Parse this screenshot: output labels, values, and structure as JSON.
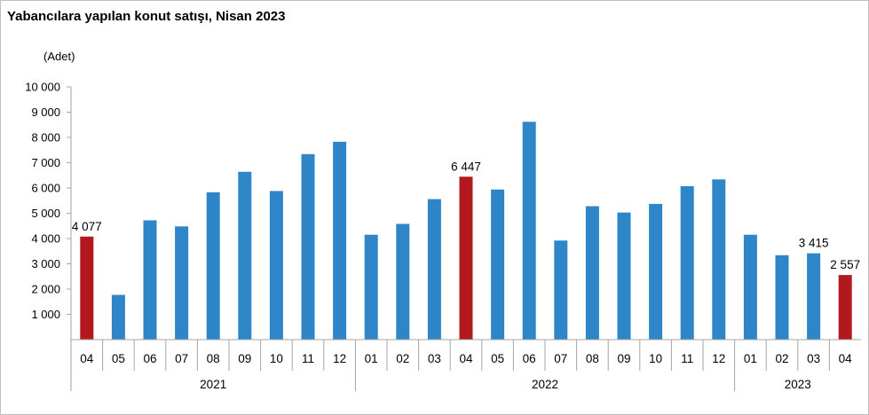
{
  "chart_data": {
    "type": "bar",
    "title": "Yabancılara yapılan konut satışı, Nisan 2023",
    "unit_label": "(Adet)",
    "ylim": [
      0,
      10000
    ],
    "yticks": [
      {
        "value": 1000,
        "label": "1 000"
      },
      {
        "value": 2000,
        "label": "2 000"
      },
      {
        "value": 3000,
        "label": "3 000"
      },
      {
        "value": 4000,
        "label": "4 000"
      },
      {
        "value": 5000,
        "label": "5 000"
      },
      {
        "value": 6000,
        "label": "6 000"
      },
      {
        "value": 7000,
        "label": "7 000"
      },
      {
        "value": 8000,
        "label": "8 000"
      },
      {
        "value": 9000,
        "label": "9 000"
      },
      {
        "value": 10000,
        "label": "10 000"
      }
    ],
    "colors": {
      "default": "#2e86c8",
      "highlight": "#b2191e"
    },
    "groups": [
      {
        "year": "2021",
        "months": [
          "04",
          "05",
          "06",
          "07",
          "08",
          "09",
          "10",
          "11",
          "12"
        ],
        "values": [
          4077,
          1770,
          4720,
          4480,
          5830,
          6640,
          5880,
          7340,
          7830
        ],
        "highlight": [
          true,
          false,
          false,
          false,
          false,
          false,
          false,
          false,
          false
        ],
        "labels": [
          "4 077",
          null,
          null,
          null,
          null,
          null,
          null,
          null,
          null
        ]
      },
      {
        "year": "2022",
        "months": [
          "01",
          "02",
          "03",
          "04",
          "05",
          "06",
          "07",
          "08",
          "09",
          "10",
          "11",
          "12"
        ],
        "values": [
          4150,
          4580,
          5560,
          6447,
          5940,
          8620,
          3920,
          5280,
          5030,
          5370,
          6070,
          6340
        ],
        "highlight": [
          false,
          false,
          false,
          true,
          false,
          false,
          false,
          false,
          false,
          false,
          false,
          false
        ],
        "labels": [
          null,
          null,
          null,
          "6 447",
          null,
          null,
          null,
          null,
          null,
          null,
          null,
          null
        ]
      },
      {
        "year": "2023",
        "months": [
          "01",
          "02",
          "03",
          "04"
        ],
        "values": [
          4150,
          3340,
          3415,
          2557
        ],
        "highlight": [
          false,
          false,
          false,
          true
        ],
        "labels": [
          null,
          null,
          "3 415",
          "2 557"
        ]
      }
    ]
  }
}
